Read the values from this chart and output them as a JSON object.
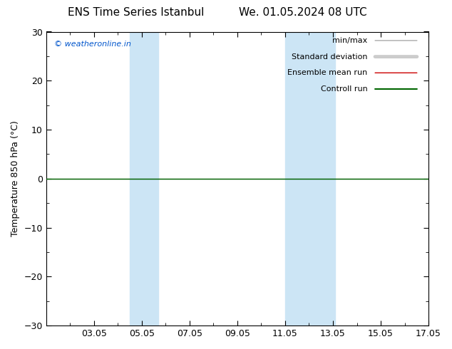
{
  "title_left": "ENS Time Series Istanbul",
  "title_right": "We. 01.05.2024 08 UTC",
  "ylabel": "Temperature 850 hPa (°C)",
  "ylim": [
    -30,
    30
  ],
  "yticks": [
    -30,
    -20,
    -10,
    0,
    10,
    20,
    30
  ],
  "xtick_labels": [
    "03.05",
    "05.05",
    "07.05",
    "09.05",
    "11.05",
    "13.05",
    "15.05",
    "17.05"
  ],
  "xtick_positions": [
    3,
    5,
    7,
    9,
    11,
    13,
    15,
    17
  ],
  "xlim": [
    1,
    17
  ],
  "shaded_bands": [
    {
      "x_start": 4.5,
      "x_end": 5.7
    },
    {
      "x_start": 11.0,
      "x_end": 13.1
    }
  ],
  "shade_color": "#cce5f5",
  "hline_color": "#000000",
  "background_color": "#ffffff",
  "watermark": "© weatheronline.in",
  "watermark_color": "#0055cc",
  "minmax_color": "#aaaaaa",
  "std_color": "#cccccc",
  "ensemble_color": "#cc0000",
  "control_color": "#006600",
  "tick_color": "#000000",
  "spine_color": "#000000",
  "title_fontsize": 11,
  "ylabel_fontsize": 9,
  "tick_fontsize": 9,
  "legend_fontsize": 8
}
